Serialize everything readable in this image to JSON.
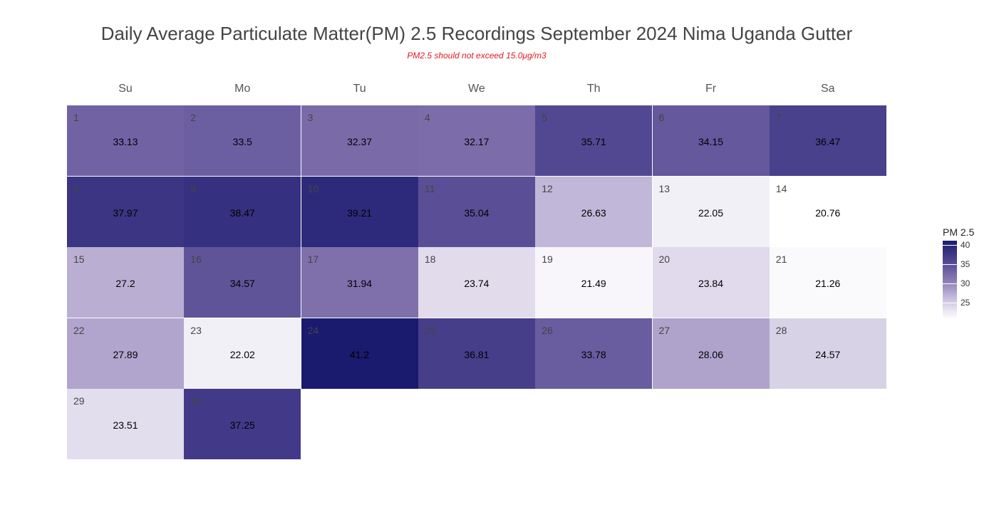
{
  "chart_data": {
    "type": "heatmap",
    "title": "Daily Average Particulate Matter(PM) 2.5 Recordings September 2024 Nima Uganda Gutter",
    "subtitle": "PM2.5 should not exceed 15.0μg/m3",
    "weekdays": [
      "Su",
      "Mo",
      "Tu",
      "We",
      "Th",
      "Fr",
      "Sa"
    ],
    "month_start_weekday": 0,
    "days": [
      1,
      2,
      3,
      4,
      5,
      6,
      7,
      8,
      9,
      10,
      11,
      12,
      13,
      14,
      15,
      16,
      17,
      18,
      19,
      20,
      21,
      22,
      23,
      24,
      25,
      26,
      27,
      28,
      29,
      30
    ],
    "values": [
      33.13,
      33.5,
      32.37,
      32.17,
      35.71,
      34.15,
      36.47,
      37.97,
      38.47,
      39.21,
      35.04,
      26.63,
      22.05,
      20.76,
      27.2,
      34.57,
      31.94,
      23.74,
      21.49,
      23.84,
      21.26,
      27.89,
      22.02,
      41.2,
      36.81,
      33.78,
      28.06,
      24.57,
      23.51,
      37.25
    ],
    "legend": {
      "title": "PM 2.5",
      "ticks": [
        40,
        35,
        30,
        25
      ],
      "range": [
        20.76,
        41.2
      ]
    },
    "colors": {
      "low": "#ffffff",
      "high": "#1a1a6e"
    }
  }
}
